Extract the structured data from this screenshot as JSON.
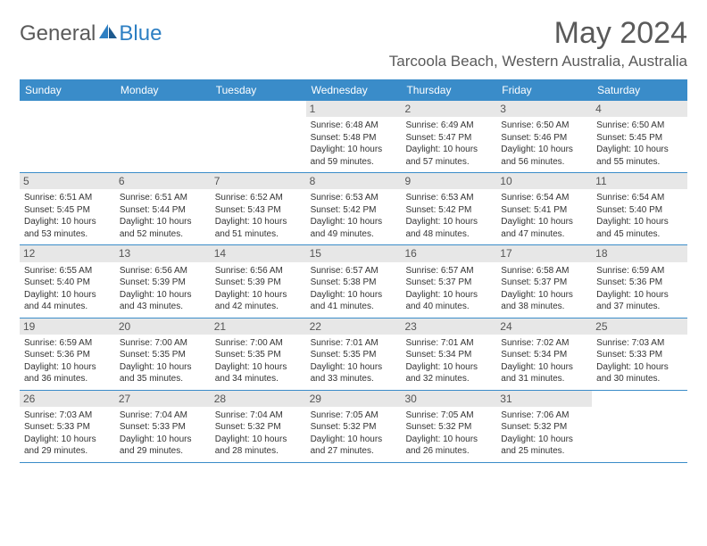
{
  "brand": {
    "part1": "General",
    "part2": "Blue"
  },
  "title": "May 2024",
  "location": "Tarcoola Beach, Western Australia, Australia",
  "colors": {
    "header_bg": "#3a8cc9",
    "header_text": "#ffffff",
    "daynum_bg": "#e7e7e7",
    "text": "#333333",
    "border": "#3a8cc9"
  },
  "dow": [
    "Sunday",
    "Monday",
    "Tuesday",
    "Wednesday",
    "Thursday",
    "Friday",
    "Saturday"
  ],
  "weeks": [
    [
      null,
      null,
      null,
      {
        "n": "1",
        "sunrise": "Sunrise: 6:48 AM",
        "sunset": "Sunset: 5:48 PM",
        "day1": "Daylight: 10 hours",
        "day2": "and 59 minutes."
      },
      {
        "n": "2",
        "sunrise": "Sunrise: 6:49 AM",
        "sunset": "Sunset: 5:47 PM",
        "day1": "Daylight: 10 hours",
        "day2": "and 57 minutes."
      },
      {
        "n": "3",
        "sunrise": "Sunrise: 6:50 AM",
        "sunset": "Sunset: 5:46 PM",
        "day1": "Daylight: 10 hours",
        "day2": "and 56 minutes."
      },
      {
        "n": "4",
        "sunrise": "Sunrise: 6:50 AM",
        "sunset": "Sunset: 5:45 PM",
        "day1": "Daylight: 10 hours",
        "day2": "and 55 minutes."
      }
    ],
    [
      {
        "n": "5",
        "sunrise": "Sunrise: 6:51 AM",
        "sunset": "Sunset: 5:45 PM",
        "day1": "Daylight: 10 hours",
        "day2": "and 53 minutes."
      },
      {
        "n": "6",
        "sunrise": "Sunrise: 6:51 AM",
        "sunset": "Sunset: 5:44 PM",
        "day1": "Daylight: 10 hours",
        "day2": "and 52 minutes."
      },
      {
        "n": "7",
        "sunrise": "Sunrise: 6:52 AM",
        "sunset": "Sunset: 5:43 PM",
        "day1": "Daylight: 10 hours",
        "day2": "and 51 minutes."
      },
      {
        "n": "8",
        "sunrise": "Sunrise: 6:53 AM",
        "sunset": "Sunset: 5:42 PM",
        "day1": "Daylight: 10 hours",
        "day2": "and 49 minutes."
      },
      {
        "n": "9",
        "sunrise": "Sunrise: 6:53 AM",
        "sunset": "Sunset: 5:42 PM",
        "day1": "Daylight: 10 hours",
        "day2": "and 48 minutes."
      },
      {
        "n": "10",
        "sunrise": "Sunrise: 6:54 AM",
        "sunset": "Sunset: 5:41 PM",
        "day1": "Daylight: 10 hours",
        "day2": "and 47 minutes."
      },
      {
        "n": "11",
        "sunrise": "Sunrise: 6:54 AM",
        "sunset": "Sunset: 5:40 PM",
        "day1": "Daylight: 10 hours",
        "day2": "and 45 minutes."
      }
    ],
    [
      {
        "n": "12",
        "sunrise": "Sunrise: 6:55 AM",
        "sunset": "Sunset: 5:40 PM",
        "day1": "Daylight: 10 hours",
        "day2": "and 44 minutes."
      },
      {
        "n": "13",
        "sunrise": "Sunrise: 6:56 AM",
        "sunset": "Sunset: 5:39 PM",
        "day1": "Daylight: 10 hours",
        "day2": "and 43 minutes."
      },
      {
        "n": "14",
        "sunrise": "Sunrise: 6:56 AM",
        "sunset": "Sunset: 5:39 PM",
        "day1": "Daylight: 10 hours",
        "day2": "and 42 minutes."
      },
      {
        "n": "15",
        "sunrise": "Sunrise: 6:57 AM",
        "sunset": "Sunset: 5:38 PM",
        "day1": "Daylight: 10 hours",
        "day2": "and 41 minutes."
      },
      {
        "n": "16",
        "sunrise": "Sunrise: 6:57 AM",
        "sunset": "Sunset: 5:37 PM",
        "day1": "Daylight: 10 hours",
        "day2": "and 40 minutes."
      },
      {
        "n": "17",
        "sunrise": "Sunrise: 6:58 AM",
        "sunset": "Sunset: 5:37 PM",
        "day1": "Daylight: 10 hours",
        "day2": "and 38 minutes."
      },
      {
        "n": "18",
        "sunrise": "Sunrise: 6:59 AM",
        "sunset": "Sunset: 5:36 PM",
        "day1": "Daylight: 10 hours",
        "day2": "and 37 minutes."
      }
    ],
    [
      {
        "n": "19",
        "sunrise": "Sunrise: 6:59 AM",
        "sunset": "Sunset: 5:36 PM",
        "day1": "Daylight: 10 hours",
        "day2": "and 36 minutes."
      },
      {
        "n": "20",
        "sunrise": "Sunrise: 7:00 AM",
        "sunset": "Sunset: 5:35 PM",
        "day1": "Daylight: 10 hours",
        "day2": "and 35 minutes."
      },
      {
        "n": "21",
        "sunrise": "Sunrise: 7:00 AM",
        "sunset": "Sunset: 5:35 PM",
        "day1": "Daylight: 10 hours",
        "day2": "and 34 minutes."
      },
      {
        "n": "22",
        "sunrise": "Sunrise: 7:01 AM",
        "sunset": "Sunset: 5:35 PM",
        "day1": "Daylight: 10 hours",
        "day2": "and 33 minutes."
      },
      {
        "n": "23",
        "sunrise": "Sunrise: 7:01 AM",
        "sunset": "Sunset: 5:34 PM",
        "day1": "Daylight: 10 hours",
        "day2": "and 32 minutes."
      },
      {
        "n": "24",
        "sunrise": "Sunrise: 7:02 AM",
        "sunset": "Sunset: 5:34 PM",
        "day1": "Daylight: 10 hours",
        "day2": "and 31 minutes."
      },
      {
        "n": "25",
        "sunrise": "Sunrise: 7:03 AM",
        "sunset": "Sunset: 5:33 PM",
        "day1": "Daylight: 10 hours",
        "day2": "and 30 minutes."
      }
    ],
    [
      {
        "n": "26",
        "sunrise": "Sunrise: 7:03 AM",
        "sunset": "Sunset: 5:33 PM",
        "day1": "Daylight: 10 hours",
        "day2": "and 29 minutes."
      },
      {
        "n": "27",
        "sunrise": "Sunrise: 7:04 AM",
        "sunset": "Sunset: 5:33 PM",
        "day1": "Daylight: 10 hours",
        "day2": "and 29 minutes."
      },
      {
        "n": "28",
        "sunrise": "Sunrise: 7:04 AM",
        "sunset": "Sunset: 5:32 PM",
        "day1": "Daylight: 10 hours",
        "day2": "and 28 minutes."
      },
      {
        "n": "29",
        "sunrise": "Sunrise: 7:05 AM",
        "sunset": "Sunset: 5:32 PM",
        "day1": "Daylight: 10 hours",
        "day2": "and 27 minutes."
      },
      {
        "n": "30",
        "sunrise": "Sunrise: 7:05 AM",
        "sunset": "Sunset: 5:32 PM",
        "day1": "Daylight: 10 hours",
        "day2": "and 26 minutes."
      },
      {
        "n": "31",
        "sunrise": "Sunrise: 7:06 AM",
        "sunset": "Sunset: 5:32 PM",
        "day1": "Daylight: 10 hours",
        "day2": "and 25 minutes."
      },
      null
    ]
  ]
}
